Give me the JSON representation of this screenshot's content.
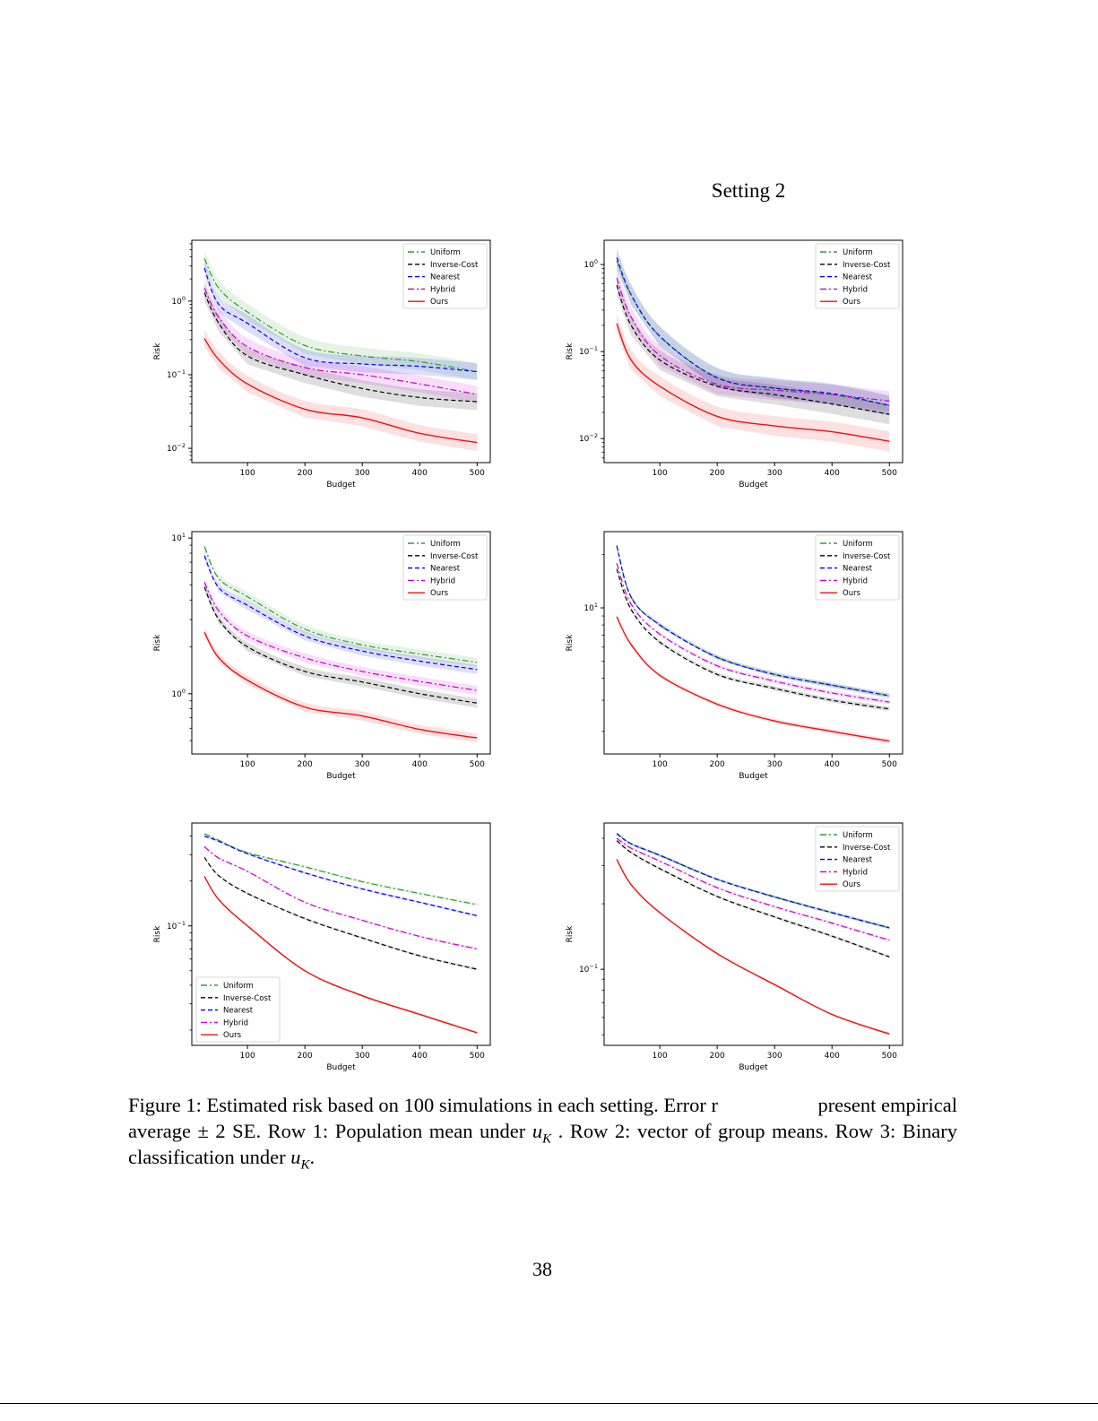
{
  "header": {
    "setting_title": "Setting 2"
  },
  "styles": {
    "Uniform": {
      "color": "#2ca02c",
      "dash": "dash-dot"
    },
    "Inverse-Cost": {
      "color": "#000000",
      "dash": "dashed"
    },
    "Nearest": {
      "color": "#0000ee",
      "dash": "dashed"
    },
    "Hybrid": {
      "color": "#cc00cc",
      "dash": "dash-dot"
    },
    "Ours": {
      "color": "#ee1111",
      "dash": "solid"
    }
  },
  "chart_data": [
    {
      "type": "line",
      "row": 1,
      "col": 1,
      "xlabel": "Budget",
      "ylabel": "Risk",
      "yscale": "log",
      "xlim": [
        3,
        523
      ],
      "ylim": [
        0.0064,
        6.7
      ],
      "xticks": [
        100,
        200,
        300,
        400,
        500
      ],
      "yticks_labeled": [
        {
          "v": 1,
          "label": "10^0"
        },
        {
          "v": 0.1,
          "label": "10^-1"
        },
        {
          "v": 0.01,
          "label": "10^-2"
        }
      ],
      "legend": "upper-right",
      "band_rel": 0.3,
      "x": [
        25,
        50,
        100,
        200,
        300,
        400,
        500
      ],
      "series": [
        {
          "name": "Uniform",
          "values": [
            3.8,
            1.5,
            0.71,
            0.25,
            0.18,
            0.15,
            0.11
          ]
        },
        {
          "name": "Inverse-Cost",
          "values": [
            1.3,
            0.5,
            0.18,
            0.1,
            0.065,
            0.049,
            0.043
          ]
        },
        {
          "name": "Nearest",
          "values": [
            2.8,
            0.9,
            0.5,
            0.17,
            0.14,
            0.13,
            0.11
          ]
        },
        {
          "name": "Hybrid",
          "values": [
            1.5,
            0.6,
            0.24,
            0.125,
            0.1,
            0.075,
            0.054
          ]
        },
        {
          "name": "Ours",
          "values": [
            0.31,
            0.16,
            0.075,
            0.034,
            0.026,
            0.016,
            0.012
          ]
        }
      ]
    },
    {
      "type": "line",
      "row": 1,
      "col": 2,
      "xlabel": "Budget",
      "ylabel": "Risk",
      "yscale": "log",
      "xlim": [
        3,
        523
      ],
      "ylim": [
        0.0053,
        1.9
      ],
      "xticks": [
        100,
        200,
        300,
        400,
        500
      ],
      "yticks_labeled": [
        {
          "v": 1,
          "label": "10^0"
        },
        {
          "v": 0.1,
          "label": "10^-1"
        },
        {
          "v": 0.01,
          "label": "10^-2"
        }
      ],
      "legend": "upper-right",
      "band_rel": 0.3,
      "x": [
        25,
        50,
        100,
        200,
        300,
        400,
        500
      ],
      "series": [
        {
          "name": "Uniform",
          "values": [
            1.1,
            0.45,
            0.15,
            0.05,
            0.038,
            0.032,
            0.024
          ]
        },
        {
          "name": "Inverse-Cost",
          "values": [
            0.58,
            0.2,
            0.08,
            0.04,
            0.032,
            0.025,
            0.019
          ]
        },
        {
          "name": "Nearest",
          "values": [
            1.2,
            0.45,
            0.15,
            0.05,
            0.038,
            0.033,
            0.024
          ]
        },
        {
          "name": "Hybrid",
          "values": [
            0.7,
            0.25,
            0.09,
            0.042,
            0.036,
            0.032,
            0.027
          ]
        },
        {
          "name": "Ours",
          "values": [
            0.21,
            0.08,
            0.04,
            0.018,
            0.014,
            0.012,
            0.0093
          ]
        }
      ]
    },
    {
      "type": "line",
      "row": 2,
      "col": 1,
      "xlabel": "Budget",
      "ylabel": "Risk",
      "yscale": "log",
      "xlim": [
        3,
        523
      ],
      "ylim": [
        0.41,
        11
      ],
      "xticks": [
        100,
        200,
        300,
        400,
        500
      ],
      "yticks_labeled": [
        {
          "v": 10,
          "label": "10^1"
        },
        {
          "v": 1,
          "label": "10^0"
        }
      ],
      "legend": "upper-right",
      "band_rel": 0.07,
      "x": [
        25,
        50,
        100,
        200,
        300,
        400,
        500
      ],
      "series": [
        {
          "name": "Uniform",
          "values": [
            8.8,
            5.5,
            4.2,
            2.6,
            2.06,
            1.8,
            1.59
          ]
        },
        {
          "name": "Inverse-Cost",
          "values": [
            4.85,
            3.0,
            2.0,
            1.39,
            1.19,
            1.0,
            0.87
          ]
        },
        {
          "name": "Nearest",
          "values": [
            7.7,
            4.8,
            3.7,
            2.35,
            1.88,
            1.62,
            1.43
          ]
        },
        {
          "name": "Hybrid",
          "values": [
            5.2,
            3.4,
            2.35,
            1.7,
            1.39,
            1.2,
            1.05
          ]
        },
        {
          "name": "Ours",
          "values": [
            2.48,
            1.7,
            1.22,
            0.82,
            0.72,
            0.59,
            0.52
          ]
        }
      ]
    },
    {
      "type": "line",
      "row": 2,
      "col": 2,
      "xlabel": "Budget",
      "ylabel": "Risk",
      "yscale": "log",
      "xlim": [
        3,
        523
      ],
      "ylim": [
        1.49,
        27
      ],
      "xticks": [
        100,
        200,
        300,
        400,
        500
      ],
      "yticks_labeled": [
        {
          "v": 10,
          "label": "10^1"
        }
      ],
      "legend": "upper-right",
      "band_rel": 0.03,
      "x": [
        25,
        50,
        100,
        200,
        300,
        400,
        500
      ],
      "series": [
        {
          "name": "Uniform",
          "values": [
            22.5,
            11.5,
            8.0,
            5.25,
            4.2,
            3.65,
            3.18
          ]
        },
        {
          "name": "Inverse-Cost",
          "values": [
            16.6,
            9.8,
            6.4,
            4.2,
            3.5,
            3.0,
            2.68
          ]
        },
        {
          "name": "Nearest",
          "values": [
            22.5,
            11.5,
            8.0,
            5.25,
            4.2,
            3.65,
            3.18
          ]
        },
        {
          "name": "Hybrid",
          "values": [
            17.9,
            10.5,
            7.1,
            4.7,
            3.85,
            3.3,
            2.93
          ]
        },
        {
          "name": "Ours",
          "values": [
            8.9,
            6.2,
            4.15,
            2.85,
            2.29,
            2.0,
            1.76
          ]
        }
      ]
    },
    {
      "type": "line",
      "row": 3,
      "col": 1,
      "xlabel": "Budget",
      "ylabel": "Risk",
      "yscale": "log",
      "xlim": [
        3,
        523
      ],
      "ylim": [
        0.0158,
        0.49
      ],
      "xticks": [
        100,
        200,
        300,
        400,
        500
      ],
      "yticks_labeled": [
        {
          "v": 0.1,
          "label": "10^-1"
        }
      ],
      "legend": "lower-left",
      "band_rel": 0.02,
      "x": [
        25,
        50,
        100,
        200,
        300,
        400,
        500
      ],
      "series": [
        {
          "name": "Uniform",
          "values": [
            0.415,
            0.375,
            0.31,
            0.249,
            0.198,
            0.165,
            0.139
          ]
        },
        {
          "name": "Inverse-Cost",
          "values": [
            0.288,
            0.217,
            0.165,
            0.112,
            0.083,
            0.063,
            0.0512
          ]
        },
        {
          "name": "Nearest",
          "values": [
            0.4,
            0.37,
            0.305,
            0.227,
            0.177,
            0.144,
            0.117
          ]
        },
        {
          "name": "Hybrid",
          "values": [
            0.34,
            0.285,
            0.232,
            0.144,
            0.109,
            0.085,
            0.07
          ]
        },
        {
          "name": "Ours",
          "values": [
            0.215,
            0.15,
            0.1,
            0.05,
            0.034,
            0.0255,
            0.0192
          ]
        }
      ]
    },
    {
      "type": "line",
      "row": 3,
      "col": 2,
      "xlabel": "Budget",
      "ylabel": "Risk",
      "yscale": "log",
      "xlim": [
        3,
        523
      ],
      "ylim": [
        0.0447,
        0.47
      ],
      "xticks": [
        100,
        200,
        300,
        400,
        500
      ],
      "yticks_labeled": [
        {
          "v": 0.1,
          "label": "10^-1"
        }
      ],
      "legend": "upper-right",
      "band_rel": 0.015,
      "x": [
        25,
        50,
        100,
        200,
        300,
        400,
        500
      ],
      "series": [
        {
          "name": "Uniform",
          "values": [
            0.42,
            0.377,
            0.334,
            0.259,
            0.215,
            0.182,
            0.155
          ]
        },
        {
          "name": "Inverse-Cost",
          "values": [
            0.39,
            0.344,
            0.29,
            0.216,
            0.174,
            0.142,
            0.114
          ]
        },
        {
          "name": "Nearest",
          "values": [
            0.42,
            0.377,
            0.334,
            0.259,
            0.215,
            0.182,
            0.155
          ]
        },
        {
          "name": "Hybrid",
          "values": [
            0.4,
            0.36,
            0.314,
            0.237,
            0.194,
            0.163,
            0.136
          ]
        },
        {
          "name": "Ours",
          "values": [
            0.32,
            0.245,
            0.182,
            0.118,
            0.085,
            0.062,
            0.0504
          ]
        }
      ]
    }
  ],
  "caption": {
    "line1_a": "Figure 1: Estimated risk based on 100 simulations in each setting. Error r",
    "line1_b": "present empirical",
    "line2_a": "average ± 2 SE. Row 1: Population mean under",
    "math_u": "u",
    "math_sub": "K",
    "line2_b": ". Row 2: vector of group means. Row 3: Binary",
    "line3_a": "classification under",
    "line3_b": "."
  },
  "page_number": "38"
}
